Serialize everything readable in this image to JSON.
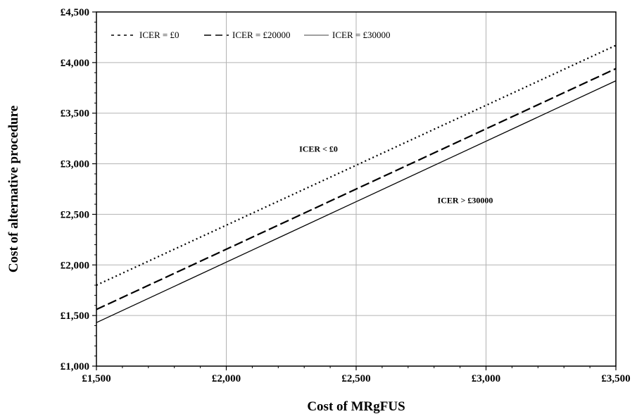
{
  "chart_data": {
    "type": "line",
    "xlabel": "Cost of MRgFUS",
    "ylabel": "Cost of alternative procedure",
    "xlim": [
      1500,
      3500
    ],
    "ylim": [
      1000,
      4500
    ],
    "x_ticks": [
      1500,
      2000,
      2500,
      3000,
      3500
    ],
    "y_ticks": [
      1000,
      1500,
      2000,
      2500,
      3000,
      3500,
      4000,
      4500
    ],
    "x_tick_labels": [
      "£1,500",
      "£2,000",
      "£2,500",
      "£3,000",
      "£3,500"
    ],
    "y_tick_labels": [
      "£1,000",
      "£1,500",
      "£2,000",
      "£2,500",
      "£3,000",
      "£3,500",
      "£4,000",
      "£4,500"
    ],
    "grid": true,
    "legend_position": "top-left",
    "series": [
      {
        "name": "ICER = £0",
        "style": "dotted",
        "x": [
          1500,
          3500
        ],
        "y": [
          1800,
          4170
        ]
      },
      {
        "name": "ICER = £20000",
        "style": "dashed",
        "x": [
          1500,
          3500
        ],
        "y": [
          1560,
          3940
        ]
      },
      {
        "name": "ICER = £30000",
        "style": "solid",
        "x": [
          1500,
          3500
        ],
        "y": [
          1430,
          3820
        ]
      }
    ],
    "annotations": [
      {
        "text": "ICER <  £0",
        "x": 2355,
        "y": 3120
      },
      {
        "text": "ICER >  £30000",
        "x": 2920,
        "y": 2610
      }
    ],
    "color": "#000000"
  }
}
